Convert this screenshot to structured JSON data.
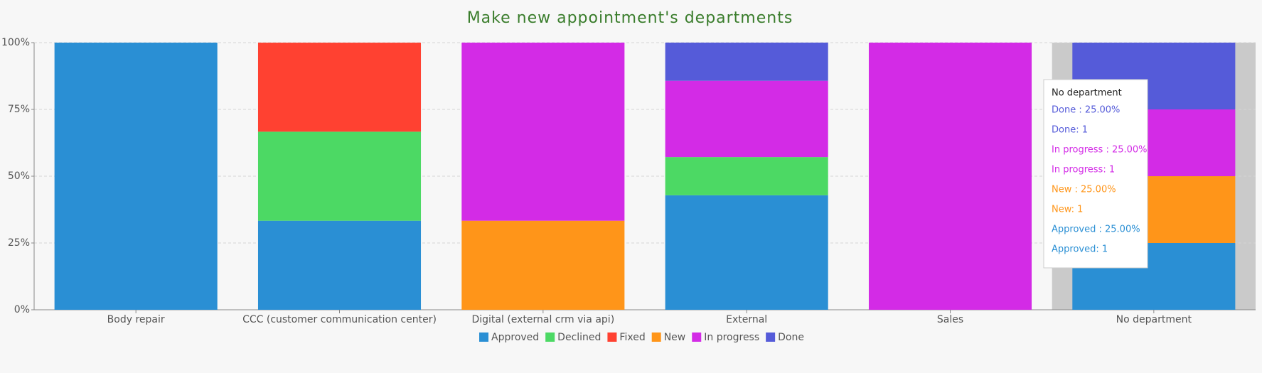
{
  "chart_data": {
    "type": "stacked_bar_percent",
    "title": "Make new appointment's departments",
    "categories": [
      "Body repair",
      "CCC (customer communication center)",
      "Digital (external crm via api)",
      "External",
      "Sales",
      "No department"
    ],
    "series": [
      {
        "name": "Approved",
        "color": "#2a8fd4",
        "values": [
          100,
          33.33,
          null,
          42.86,
          null,
          25
        ]
      },
      {
        "name": "Declined",
        "color": "#4cd964",
        "values": [
          null,
          33.33,
          null,
          14.29,
          null,
          null
        ]
      },
      {
        "name": "Fixed",
        "color": "#ff4131",
        "values": [
          null,
          33.33,
          null,
          null,
          null,
          null
        ]
      },
      {
        "name": "New",
        "color": "#ff9519",
        "values": [
          null,
          null,
          33.33,
          null,
          null,
          25
        ]
      },
      {
        "name": "In progress",
        "color": "#d32be6",
        "values": [
          null,
          null,
          66.67,
          28.57,
          100,
          25
        ]
      },
      {
        "name": "Done",
        "color": "#555bd9",
        "values": [
          null,
          null,
          null,
          14.29,
          null,
          25
        ]
      }
    ],
    "ylim": [
      0,
      100
    ],
    "yticks": [
      {
        "value": 0,
        "label": "0%"
      },
      {
        "value": 25,
        "label": "25%"
      },
      {
        "value": 50,
        "label": "50%"
      },
      {
        "value": 75,
        "label": "75%"
      },
      {
        "value": 100,
        "label": "100%"
      }
    ],
    "grid": true,
    "highlighted_category": 5,
    "tooltip": {
      "title": "No department",
      "lines": [
        {
          "text": "Done : 25.00%",
          "color": "#555bd9"
        },
        {
          "text": "Done: 1",
          "color": "#555bd9"
        },
        {
          "text": "In progress : 25.00%",
          "color": "#d32be6"
        },
        {
          "text": "In progress: 1",
          "color": "#d32be6"
        },
        {
          "text": "New : 25.00%",
          "color": "#ff9519"
        },
        {
          "text": "New: 1",
          "color": "#ff9519"
        },
        {
          "text": "Approved : 25.00%",
          "color": "#2a8fd4"
        },
        {
          "text": "Approved: 1",
          "color": "#2a8fd4"
        }
      ]
    }
  }
}
